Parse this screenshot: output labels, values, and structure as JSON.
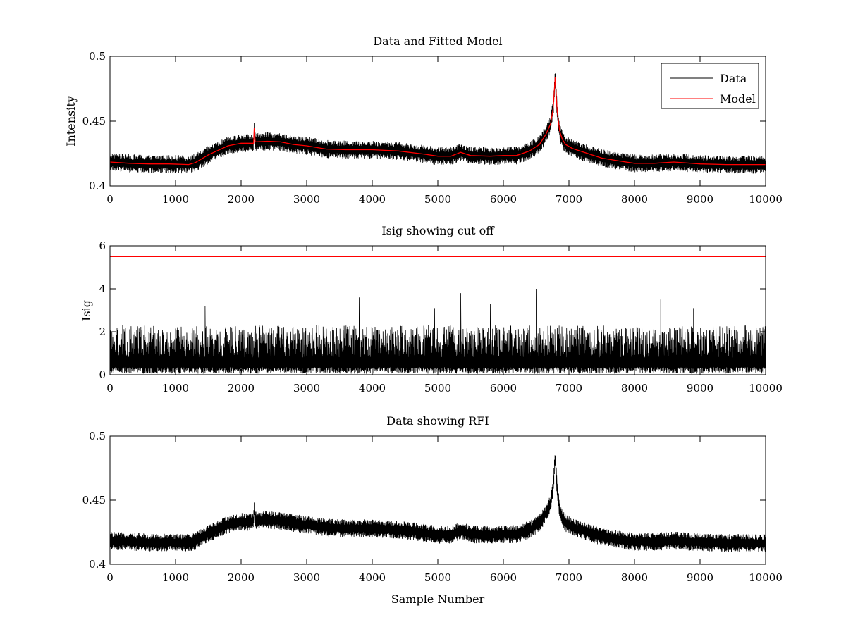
{
  "chart_data": [
    {
      "type": "line",
      "title": "Data and Fitted Model",
      "xlabel": "",
      "ylabel": "Intensity",
      "xlim": [
        0,
        10000
      ],
      "ylim": [
        0.4,
        0.5
      ],
      "xticks": [
        0,
        1000,
        2000,
        3000,
        4000,
        5000,
        6000,
        7000,
        8000,
        9000,
        10000
      ],
      "yticks": [
        0.4,
        0.45,
        0.5
      ],
      "ytick_labels": [
        "0.4",
        "0.45",
        "0.5"
      ],
      "grid": false,
      "legend": "top-right",
      "series": [
        {
          "name": "Data",
          "color": "#000000",
          "style": "noisy",
          "noise_amplitude": 0.007,
          "x": [
            0,
            300,
            600,
            900,
            1200,
            1300,
            1500,
            1800,
            2000,
            2190,
            2200,
            2215,
            2400,
            2600,
            2800,
            3000,
            3300,
            3600,
            4000,
            4400,
            4800,
            5000,
            5200,
            5350,
            5500,
            5800,
            6000,
            6200,
            6400,
            6550,
            6650,
            6720,
            6760,
            6790,
            6820,
            6860,
            6900,
            6950,
            7050,
            7200,
            7500,
            7800,
            8000,
            8300,
            8600,
            9000,
            9400,
            9700,
            10000
          ],
          "y": [
            0.4185,
            0.4175,
            0.417,
            0.417,
            0.4165,
            0.418,
            0.424,
            0.431,
            0.433,
            0.433,
            0.445,
            0.434,
            0.4345,
            0.434,
            0.432,
            0.431,
            0.4285,
            0.428,
            0.428,
            0.427,
            0.4245,
            0.423,
            0.423,
            0.426,
            0.4235,
            0.423,
            0.4235,
            0.4235,
            0.427,
            0.432,
            0.44,
            0.448,
            0.46,
            0.484,
            0.458,
            0.442,
            0.436,
            0.432,
            0.429,
            0.4265,
            0.4215,
            0.419,
            0.4175,
            0.4175,
            0.4185,
            0.417,
            0.4165,
            0.4165,
            0.4165
          ]
        },
        {
          "name": "Model",
          "color": "#ff0000",
          "style": "smooth",
          "x": [
            0,
            300,
            600,
            900,
            1200,
            1300,
            1500,
            1800,
            2000,
            2190,
            2200,
            2215,
            2400,
            2600,
            2800,
            3000,
            3300,
            3600,
            4000,
            4400,
            4800,
            5000,
            5200,
            5350,
            5500,
            5800,
            6000,
            6200,
            6400,
            6550,
            6650,
            6720,
            6760,
            6790,
            6820,
            6860,
            6900,
            6950,
            7050,
            7200,
            7500,
            7800,
            8000,
            8300,
            8600,
            9000,
            9400,
            9700,
            10000
          ],
          "y": [
            0.4185,
            0.4175,
            0.417,
            0.417,
            0.4165,
            0.418,
            0.424,
            0.431,
            0.433,
            0.433,
            0.445,
            0.434,
            0.4345,
            0.434,
            0.432,
            0.431,
            0.4285,
            0.428,
            0.428,
            0.427,
            0.4245,
            0.423,
            0.423,
            0.426,
            0.4235,
            0.423,
            0.4235,
            0.4235,
            0.427,
            0.432,
            0.44,
            0.448,
            0.46,
            0.484,
            0.458,
            0.442,
            0.436,
            0.432,
            0.429,
            0.4265,
            0.4215,
            0.419,
            0.4175,
            0.4175,
            0.4185,
            0.417,
            0.4165,
            0.4165,
            0.4165
          ]
        }
      ]
    },
    {
      "type": "line",
      "title": "Isig showing cut off",
      "xlabel": "",
      "ylabel": "Isig",
      "xlim": [
        0,
        10000
      ],
      "ylim": [
        0,
        6
      ],
      "xticks": [
        0,
        1000,
        2000,
        3000,
        4000,
        5000,
        6000,
        7000,
        8000,
        9000,
        10000
      ],
      "yticks": [
        0,
        2,
        4,
        6
      ],
      "ytick_labels": [
        "0",
        "2",
        "4",
        "6"
      ],
      "grid": false,
      "series": [
        {
          "color": "#000000",
          "style": "spiky",
          "typical_max": 2.3,
          "peaks": [
            {
              "x": 1450,
              "y": 3.2
            },
            {
              "x": 3800,
              "y": 3.6
            },
            {
              "x": 4950,
              "y": 3.1
            },
            {
              "x": 5350,
              "y": 3.8
            },
            {
              "x": 5800,
              "y": 3.3
            },
            {
              "x": 6500,
              "y": 4.0
            },
            {
              "x": 8400,
              "y": 3.5
            },
            {
              "x": 8900,
              "y": 3.1
            }
          ]
        },
        {
          "color": "#ff0000",
          "style": "threshold",
          "x": [
            0,
            10000
          ],
          "y": [
            5.5,
            5.5
          ]
        }
      ]
    },
    {
      "type": "line",
      "title": "Data showing RFI",
      "xlabel": "Sample Number",
      "ylabel": "",
      "xlim": [
        0,
        10000
      ],
      "ylim": [
        0.4,
        0.5
      ],
      "xticks": [
        0,
        1000,
        2000,
        3000,
        4000,
        5000,
        6000,
        7000,
        8000,
        9000,
        10000
      ],
      "yticks": [
        0.4,
        0.45,
        0.5
      ],
      "ytick_labels": [
        "0.4",
        "0.45",
        "0.5"
      ],
      "grid": false,
      "series": [
        {
          "color": "#000000",
          "style": "noisy",
          "noise_amplitude": 0.007,
          "x": [
            0,
            300,
            600,
            900,
            1200,
            1300,
            1500,
            1800,
            2000,
            2190,
            2200,
            2215,
            2400,
            2600,
            2800,
            3000,
            3300,
            3600,
            4000,
            4400,
            4800,
            5000,
            5200,
            5350,
            5500,
            5800,
            6000,
            6200,
            6400,
            6550,
            6650,
            6720,
            6760,
            6790,
            6820,
            6860,
            6900,
            6950,
            7050,
            7200,
            7500,
            7800,
            8000,
            8300,
            8600,
            9000,
            9400,
            9700,
            10000
          ],
          "y": [
            0.4185,
            0.4175,
            0.417,
            0.417,
            0.4165,
            0.418,
            0.424,
            0.431,
            0.433,
            0.433,
            0.445,
            0.434,
            0.4345,
            0.434,
            0.432,
            0.431,
            0.4285,
            0.428,
            0.428,
            0.427,
            0.4245,
            0.423,
            0.423,
            0.426,
            0.4235,
            0.423,
            0.4235,
            0.4235,
            0.427,
            0.432,
            0.44,
            0.448,
            0.46,
            0.484,
            0.458,
            0.442,
            0.436,
            0.432,
            0.429,
            0.4265,
            0.4215,
            0.419,
            0.4175,
            0.4175,
            0.4185,
            0.417,
            0.4165,
            0.4165,
            0.4165
          ]
        }
      ]
    }
  ],
  "legend": {
    "items": [
      "Data",
      "Model"
    ]
  }
}
